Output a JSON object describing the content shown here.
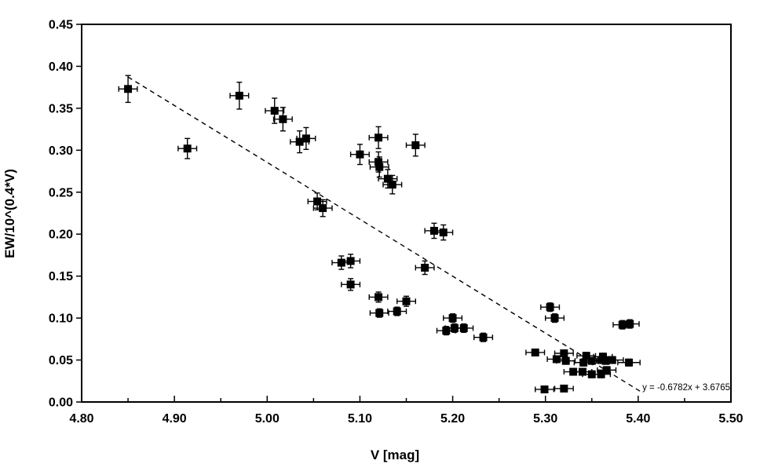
{
  "figure": {
    "background": "#ffffff",
    "foreground": "#000000"
  },
  "chart_data": {
    "type": "scatter",
    "title": "",
    "xlabel": "V [mag]",
    "ylabel": "EW/10^(0.4*V)",
    "xlim": [
      4.8,
      5.5
    ],
    "ylim": [
      0.0,
      0.45
    ],
    "grid": false,
    "legend": "none",
    "marker": "filled-square",
    "marker_color": "#000000",
    "line_color": "#000000",
    "error_bars": "xy",
    "x_tick_labels": [
      "4.80",
      "4.90",
      "5.00",
      "5.10",
      "5.20",
      "5.30",
      "5.40",
      "5.50"
    ],
    "x_minor_ticks": [
      4.85,
      4.95,
      5.05,
      5.15,
      5.25,
      5.35,
      5.45
    ],
    "y_tick_labels": [
      "0.00",
      "0.05",
      "0.10",
      "0.15",
      "0.20",
      "0.25",
      "0.30",
      "0.35",
      "0.40",
      "0.45"
    ],
    "points": [
      [
        4.85,
        0.373,
        0.01,
        0.016
      ],
      [
        4.914,
        0.302,
        0.01,
        0.012
      ],
      [
        4.97,
        0.365,
        0.01,
        0.016
      ],
      [
        5.008,
        0.347,
        0.01,
        0.015
      ],
      [
        5.017,
        0.337,
        0.01,
        0.014
      ],
      [
        5.035,
        0.31,
        0.01,
        0.013
      ],
      [
        5.042,
        0.314,
        0.01,
        0.013
      ],
      [
        5.054,
        0.239,
        0.01,
        0.01
      ],
      [
        5.06,
        0.231,
        0.01,
        0.01
      ],
      [
        5.08,
        0.166,
        0.01,
        0.008
      ],
      [
        5.09,
        0.168,
        0.01,
        0.008
      ],
      [
        5.09,
        0.14,
        0.01,
        0.007
      ],
      [
        5.1,
        0.295,
        0.01,
        0.012
      ],
      [
        5.12,
        0.315,
        0.01,
        0.013
      ],
      [
        5.12,
        0.286,
        0.01,
        0.012
      ],
      [
        5.121,
        0.28,
        0.01,
        0.012
      ],
      [
        5.12,
        0.125,
        0.01,
        0.006
      ],
      [
        5.121,
        0.106,
        0.01,
        0.005
      ],
      [
        5.13,
        0.266,
        0.01,
        0.011
      ],
      [
        5.135,
        0.259,
        0.01,
        0.011
      ],
      [
        5.14,
        0.108,
        0.01,
        0.005
      ],
      [
        5.15,
        0.12,
        0.01,
        0.006
      ],
      [
        5.16,
        0.306,
        0.01,
        0.013
      ],
      [
        5.17,
        0.16,
        0.01,
        0.008
      ],
      [
        5.18,
        0.204,
        0.01,
        0.009
      ],
      [
        5.19,
        0.202,
        0.01,
        0.009
      ],
      [
        5.193,
        0.085,
        0.01,
        0.005
      ],
      [
        5.2,
        0.1,
        0.01,
        0.005
      ],
      [
        5.202,
        0.088,
        0.01,
        0.005
      ],
      [
        5.212,
        0.088,
        0.01,
        0.005
      ],
      [
        5.233,
        0.077,
        0.01,
        0.005
      ],
      [
        5.289,
        0.059,
        0.01,
        0.004
      ],
      [
        5.305,
        0.113,
        0.01,
        0.005
      ],
      [
        5.31,
        0.1,
        0.01,
        0.005
      ],
      [
        5.299,
        0.015,
        0.01,
        0.003
      ],
      [
        5.32,
        0.016,
        0.01,
        0.003
      ],
      [
        5.32,
        0.058,
        0.01,
        0.004
      ],
      [
        5.312,
        0.051,
        0.01,
        0.004
      ],
      [
        5.322,
        0.049,
        0.01,
        0.004
      ],
      [
        5.33,
        0.036,
        0.01,
        0.004
      ],
      [
        5.344,
        0.055,
        0.01,
        0.004
      ],
      [
        5.341,
        0.047,
        0.01,
        0.004
      ],
      [
        5.35,
        0.049,
        0.01,
        0.004
      ],
      [
        5.34,
        0.036,
        0.01,
        0.004
      ],
      [
        5.35,
        0.033,
        0.01,
        0.004
      ],
      [
        5.36,
        0.05,
        0.01,
        0.004
      ],
      [
        5.362,
        0.054,
        0.01,
        0.004
      ],
      [
        5.365,
        0.049,
        0.01,
        0.004
      ],
      [
        5.372,
        0.05,
        0.012,
        0.004
      ],
      [
        5.36,
        0.033,
        0.01,
        0.004
      ],
      [
        5.366,
        0.038,
        0.01,
        0.004
      ],
      [
        5.383,
        0.092,
        0.01,
        0.005
      ],
      [
        5.391,
        0.093,
        0.01,
        0.005
      ],
      [
        5.39,
        0.047,
        0.012,
        0.004
      ]
    ],
    "trendline": {
      "style": "dashed",
      "slope": -0.6782,
      "intercept": 3.6765,
      "x_start": 4.85,
      "x_end": 5.405,
      "equation_label": "y = -0.6782x + 3.6765"
    }
  }
}
